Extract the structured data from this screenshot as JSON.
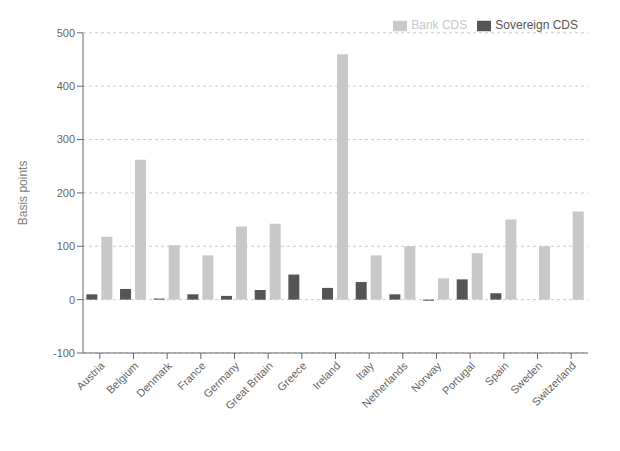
{
  "chart_data": {
    "type": "bar",
    "categories": [
      "Austria",
      "Belgium",
      "Denmark",
      "France",
      "Germany",
      "Great Britain",
      "Greece",
      "Ireland",
      "Italy",
      "Netherlands",
      "Norway",
      "Portugal",
      "Spain",
      "Sweden",
      "Switzerland"
    ],
    "series": [
      {
        "name": "Sovereign CDS",
        "color": "#555555",
        "values": [
          10,
          20,
          2,
          10,
          7,
          18,
          47,
          22,
          33,
          10,
          -2,
          38,
          12,
          0,
          0
        ]
      },
      {
        "name": "Bank CDS",
        "color": "#c8c8c8",
        "values": [
          118,
          262,
          102,
          83,
          137,
          142,
          0,
          460,
          83,
          100,
          40,
          87,
          150,
          100,
          165
        ]
      }
    ],
    "ylabel": "Basis points",
    "ylim": [
      -100,
      500
    ],
    "yticks": [
      -100,
      0,
      100,
      200,
      300,
      400,
      500
    ],
    "grid": true,
    "legend": "upper right"
  }
}
